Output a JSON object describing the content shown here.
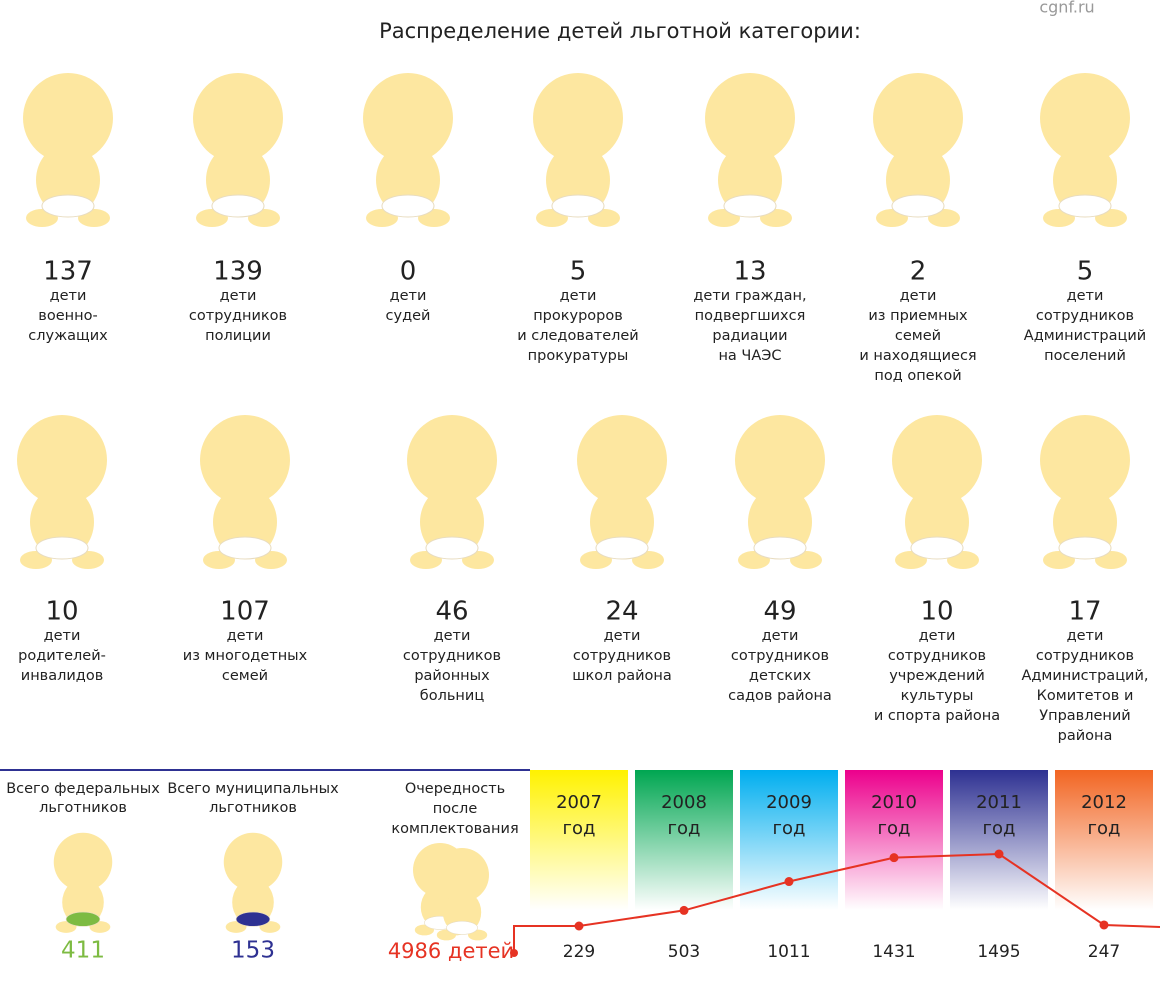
{
  "watermark": "cgnf.ru",
  "title": "Распределение  детей льготной категории:",
  "rows": [
    [
      {
        "value": 137,
        "label": [
          "дети",
          "военно-",
          "служащих"
        ]
      },
      {
        "value": 139,
        "label": [
          "дети",
          "сотрудников",
          "полиции"
        ]
      },
      {
        "value": 0,
        "label": [
          "дети",
          "судей"
        ]
      },
      {
        "value": 5,
        "label": [
          "дети",
          "прокуроров",
          "и следователей",
          "прокуратуры"
        ]
      },
      {
        "value": 13,
        "label": [
          "дети граждан,",
          "подвергшихся",
          "радиации",
          "на ЧАЭС"
        ]
      },
      {
        "value": 2,
        "label": [
          "дети",
          "из приемных",
          "семей",
          "и находящиеся",
          "под опекой"
        ]
      },
      {
        "value": 5,
        "label": [
          "дети",
          "сотрудников",
          "Администраций",
          "поселений"
        ]
      }
    ],
    [
      {
        "value": 10,
        "label": [
          "дети",
          "родителей-",
          "инвалидов"
        ]
      },
      {
        "value": 107,
        "label": [
          "дети",
          "из многодетных",
          "семей"
        ]
      },
      {
        "value": 46,
        "label": [
          "дети",
          "сотрудников",
          "районных",
          "больниц"
        ]
      },
      {
        "value": 24,
        "label": [
          "дети",
          "сотрудников",
          "школ района"
        ]
      },
      {
        "value": 49,
        "label": [
          "дети",
          "сотрудников",
          "детских",
          "садов района"
        ]
      },
      {
        "value": 10,
        "label": [
          "дети",
          "сотрудников",
          "учреждений",
          "культуры",
          "и спорта района"
        ]
      },
      {
        "value": 17,
        "label": [
          "дети",
          "сотрудников",
          "Администраций,",
          "Комитетов и",
          "Управлений",
          "района"
        ]
      }
    ]
  ],
  "totals": [
    {
      "label": [
        "Всего федеральных",
        "льготников"
      ],
      "value": 411,
      "color": "#7dbb42"
    },
    {
      "label": [
        "Всего муниципальных",
        "льготников"
      ],
      "value": 153,
      "color": "#2e3192"
    }
  ],
  "queue": {
    "label": [
      "Очередность",
      "после",
      "комплектования"
    ],
    "value": "4986 детей",
    "color": "#e63323"
  },
  "years": [
    {
      "label": [
        "2007",
        "год"
      ],
      "value": 229,
      "color": "#fff200"
    },
    {
      "label": [
        "2008",
        "год"
      ],
      "value": 503,
      "color": "#00a651"
    },
    {
      "label": [
        "2009",
        "год"
      ],
      "value": 1011,
      "color": "#00aeef"
    },
    {
      "label": [
        "2010",
        "год"
      ],
      "value": 1431,
      "color": "#ec008c"
    },
    {
      "label": [
        "2011",
        "год"
      ],
      "value": 1495,
      "color": "#2e3192"
    },
    {
      "label": [
        "2012",
        "год"
      ],
      "value": 247,
      "color": "#f26522"
    }
  ]
}
